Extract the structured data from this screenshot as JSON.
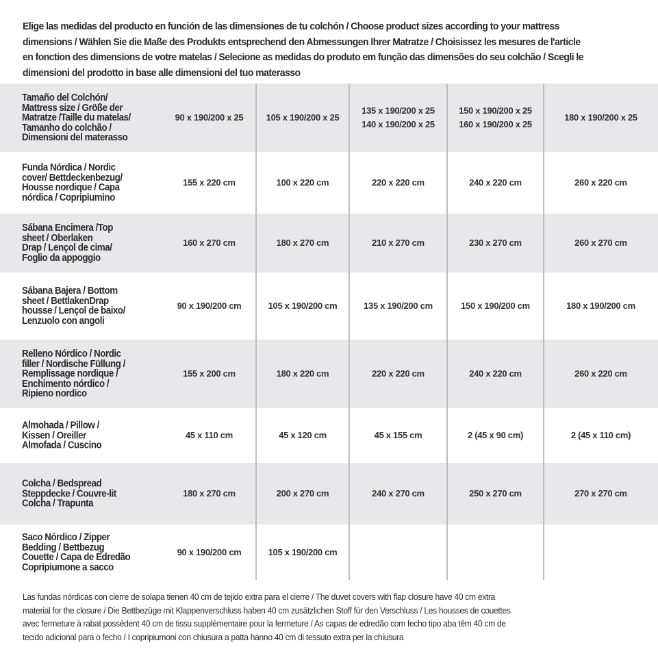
{
  "intro": "Elige las medidas del producto en función de las dimensiones de tu colchón / Choose product sizes according to your mattress\ndimensions / Wählen Sie die Maße des Produkts entsprechend den Abmessungen Ihrer Matratze / Choisissez les mesures de l'article\nen fonction des dimensions de votre matelas / Selecione as medidas do produto em função das dimensões do seu colchão / Scegli le\ndimensioni del prodotto in base alle dimensioni del tuo materasso",
  "rows": [
    {
      "label": "Tamaño del Colchón/\nMattress size / Größe der\nMatratze /Taille du matelas/\nTamanho do colchão /\nDimensioni del materasso",
      "cells": [
        "90 x 190/200 x 25",
        "105 x 190/200 x 25",
        "135 x 190/200 x 25\n140 x 190/200 x 25",
        "150 x 190/200 x 25\n160 x 190/200 x 25",
        "180 x 190/200 x 25"
      ]
    },
    {
      "label": "Funda Nórdica /  Nordic\ncover/ Bettdeckenbezug/\nHousse nordique  / Capa\nnórdica / Copripiumino",
      "cells": [
        "155 x 220 cm",
        "100 x 220 cm",
        "220 x 220 cm",
        "240 x 220 cm",
        "260 x 220 cm"
      ]
    },
    {
      "label": "Sábana Encimera /Top\nsheet / Oberlaken\nDrap / Lençol de cima/\nFoglio da appoggio",
      "cells": [
        "160 x 270 cm",
        "180 x 270 cm",
        "210 x 270 cm",
        "230 x 270 cm",
        "260 x 270 cm"
      ]
    },
    {
      "label": "Sábana Bajera / Bottom\nsheet / BettlakenDrap\nhousse / Lençol de baixo/\nLenzuolo con angoli",
      "cells": [
        "90 x 190/200 cm",
        "105 x 190/200 cm",
        "135 x 190/200 cm",
        "150 x 190/200 cm",
        "180 x 190/200 cm"
      ]
    },
    {
      "label": "Relleno Nórdico / Nordic\nfiller / Nordische Füllung /\nRemplissage nordique /\nEnchimento nórdico /\nRipieno nordico",
      "cells": [
        "155 x 200 cm",
        "180 x 220 cm",
        "220 x 220 cm",
        "240 x 220 cm",
        "260 x 220 cm"
      ]
    },
    {
      "label": "Almohada  / Pillow /\nKissen / Oreiller\nAlmofada / Cuscino",
      "cells": [
        "45 x 110 cm",
        "45 x 120 cm",
        "45 x 155 cm",
        "2 (45 x 90 cm)",
        "2 (45 x 110 cm)"
      ]
    },
    {
      "label": "Colcha / Bedspread\nSteppdecke / Couvre-lit\nColcha / Trapunta",
      "cells": [
        "180 x 270 cm",
        "200 x 270 cm",
        "240 x 270 cm",
        "250 x 270 cm",
        "270 x 270 cm"
      ]
    },
    {
      "label": "Saco Nórdico / Zipper\nBedding / Bettbezug\nCouette  / Capa de Edredão\nCopripiumone a sacco",
      "cells": [
        "90 x 190/200 cm",
        "105 x 190/200 cm",
        "",
        "",
        ""
      ]
    }
  ],
  "footer": "Las fundas nórdicas con cierre de solapa tienen 40 cm de tejido extra para el cierre   / The duvet covers with flap closure have 40 cm extra\nmaterial for the closure / Die Bettbezüge mit Klappenverschluss haben 40 cm zusätzlichen Stoff für den Verschluss / Les housses de couettes\navec fermeture à rabat possèdent 40 cm de tissu supplémentaire pour la fermeture / As capas de edredão com fecho tipo aba têm 40 cm de\ntecido adicional para o fecho / I copripiumoni con chiusura a patta hanno 40 cm di tessuto extra per la chiusura",
  "colors": {
    "stripe": "#e8e8ea",
    "divider": "#bdbdbd",
    "text": "#2a2a2a"
  }
}
